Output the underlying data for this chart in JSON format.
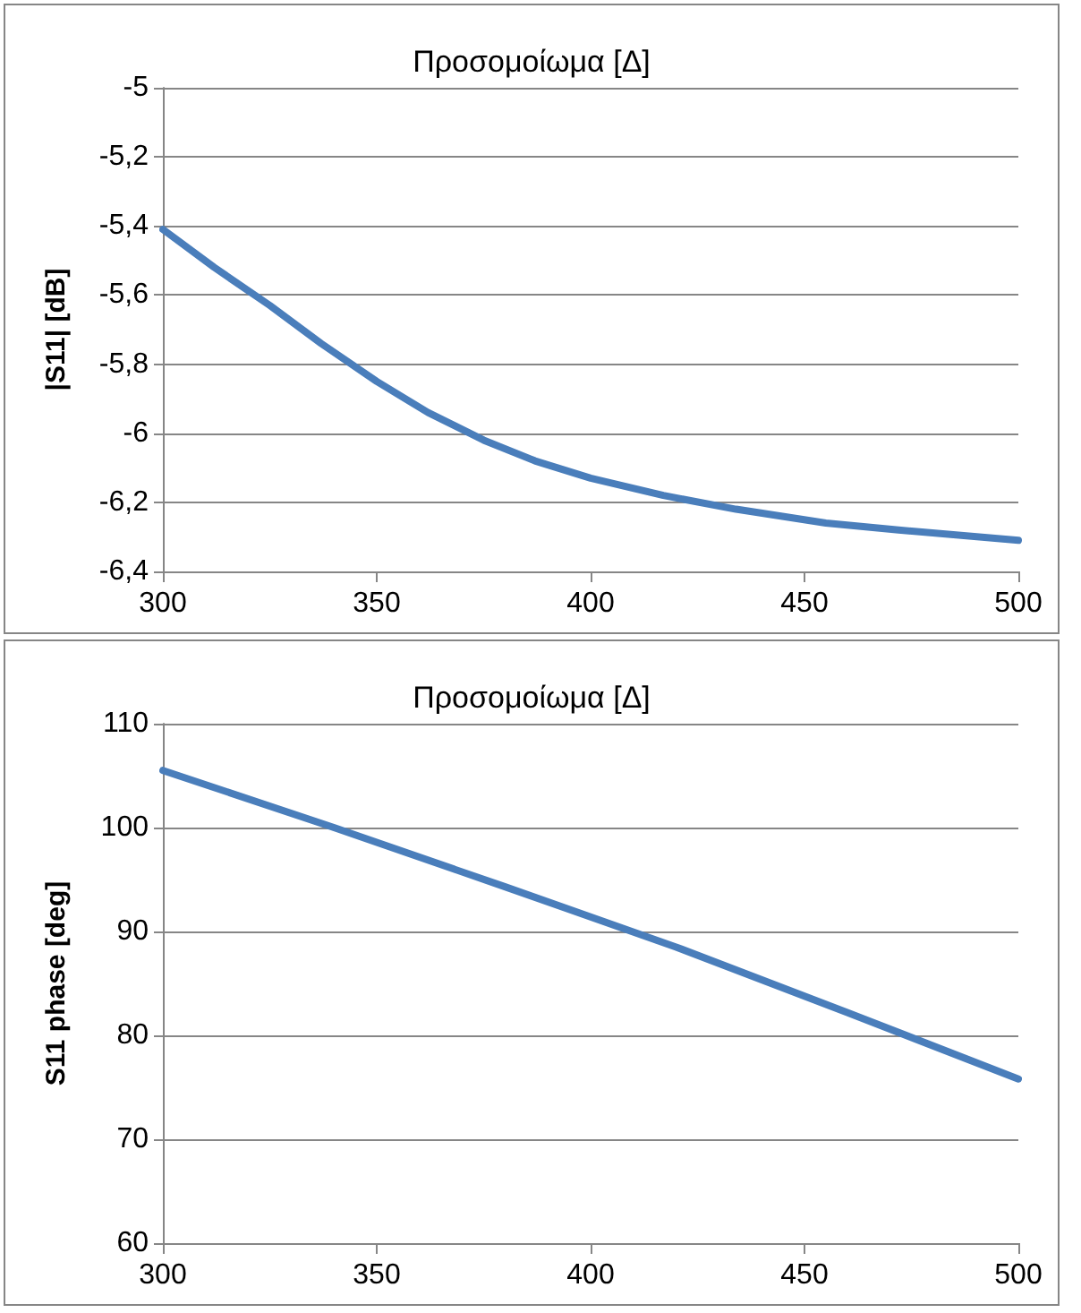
{
  "chart_data": [
    {
      "type": "line",
      "title": "Προσομοίωμα [Δ]",
      "ylabel": "|S11| [dB]",
      "x": [
        300,
        312,
        325,
        337,
        350,
        362,
        375,
        387,
        400,
        417,
        434,
        455,
        472,
        500
      ],
      "series": [
        {
          "color": "#4a7ebb",
          "values": [
            -5.41,
            -5.52,
            -5.63,
            -5.74,
            -5.85,
            -5.94,
            -6.02,
            -6.08,
            -6.13,
            -6.18,
            -6.22,
            -6.26,
            -6.28,
            -6.31
          ]
        }
      ],
      "xlim": [
        300,
        500
      ],
      "xticks": [
        300,
        350,
        400,
        450,
        500
      ],
      "ylim": [
        -6.4,
        -5
      ],
      "yticks": [
        {
          "value": -6.4,
          "label": "-6,4"
        },
        {
          "value": -6.2,
          "label": "-6,2"
        },
        {
          "value": -6,
          "label": "-6"
        },
        {
          "value": -5.8,
          "label": "-5,8"
        },
        {
          "value": -5.6,
          "label": "-5,6"
        },
        {
          "value": -5.4,
          "label": "-5,4"
        },
        {
          "value": -5.2,
          "label": "-5,2"
        },
        {
          "value": -5,
          "label": "-5"
        }
      ],
      "grid": "y",
      "marker": "none",
      "line_style": "solid"
    },
    {
      "type": "line",
      "title": "Προσομοίωμα [Δ]",
      "ylabel": "S11 phase [deg]",
      "x": [
        300,
        340,
        380,
        420,
        460,
        500
      ],
      "series": [
        {
          "color": "#4a7ebb",
          "values": [
            105.5,
            100,
            94.3,
            88.5,
            82.2,
            75.8
          ]
        }
      ],
      "xlim": [
        300,
        500
      ],
      "xticks": [
        300,
        350,
        400,
        450,
        500
      ],
      "ylim": [
        60,
        110
      ],
      "yticks": [
        60,
        70,
        80,
        90,
        100,
        110
      ],
      "grid": "y",
      "marker": "none",
      "line_style": "solid"
    }
  ]
}
